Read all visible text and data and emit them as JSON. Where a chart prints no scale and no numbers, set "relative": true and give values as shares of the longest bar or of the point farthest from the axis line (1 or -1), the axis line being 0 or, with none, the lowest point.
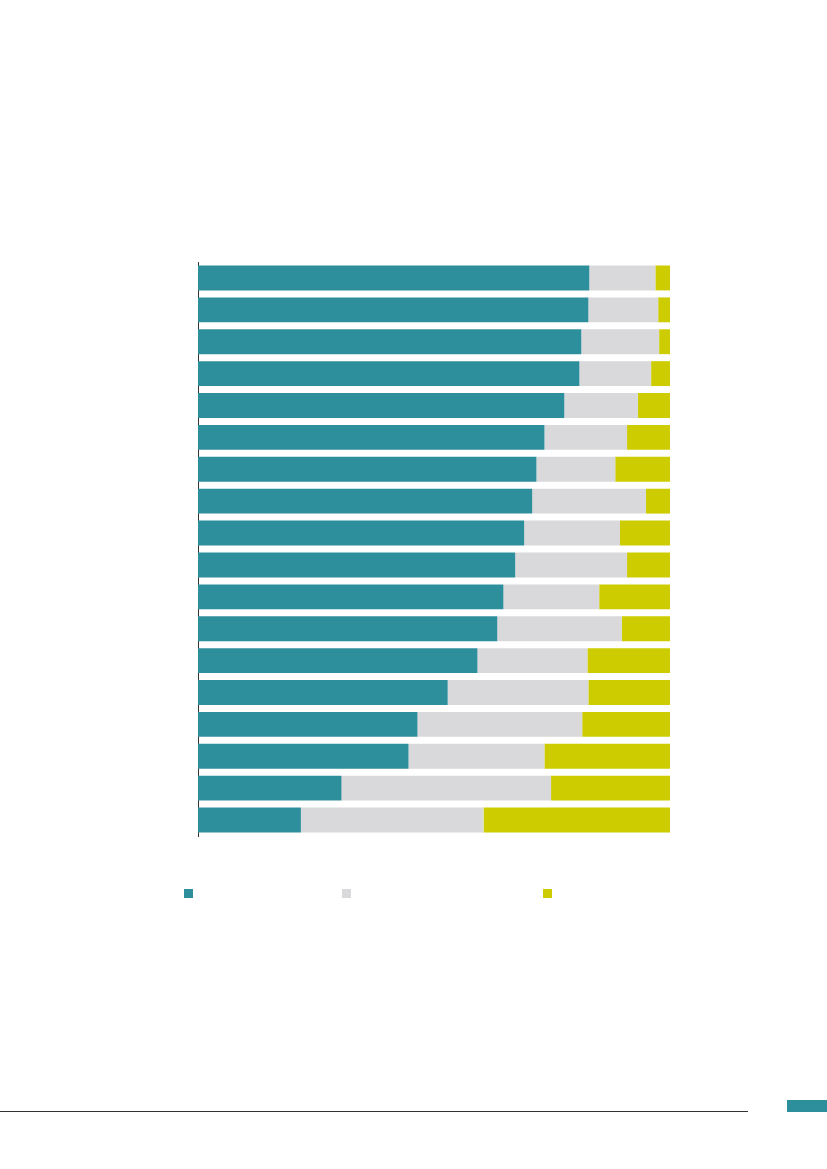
{
  "chart_data": {
    "type": "bar",
    "orientation": "horizontal",
    "stacked": true,
    "relative": true,
    "categories": [
      null,
      null,
      null,
      null,
      null,
      null,
      null,
      null,
      null,
      null,
      null,
      null,
      null,
      null,
      null,
      null,
      null,
      null
    ],
    "series": [
      {
        "color": "#2e8f9c",
        "values": [
          0.829,
          0.827,
          0.812,
          0.808,
          0.776,
          0.734,
          0.717,
          0.708,
          0.691,
          0.672,
          0.647,
          0.634,
          0.592,
          0.529,
          0.465,
          0.446,
          0.304,
          0.218
        ]
      },
      {
        "color": "#d9d9db",
        "values": [
          0.14,
          0.148,
          0.165,
          0.152,
          0.156,
          0.175,
          0.167,
          0.241,
          0.203,
          0.237,
          0.203,
          0.264,
          0.233,
          0.298,
          0.349,
          0.288,
          0.444,
          0.387
        ]
      },
      {
        "color": "#cccc00",
        "values": [
          0.031,
          0.025,
          0.023,
          0.04,
          0.068,
          0.091,
          0.116,
          0.051,
          0.106,
          0.091,
          0.15,
          0.102,
          0.175,
          0.173,
          0.186,
          0.266,
          0.252,
          0.395
        ]
      }
    ]
  }
}
